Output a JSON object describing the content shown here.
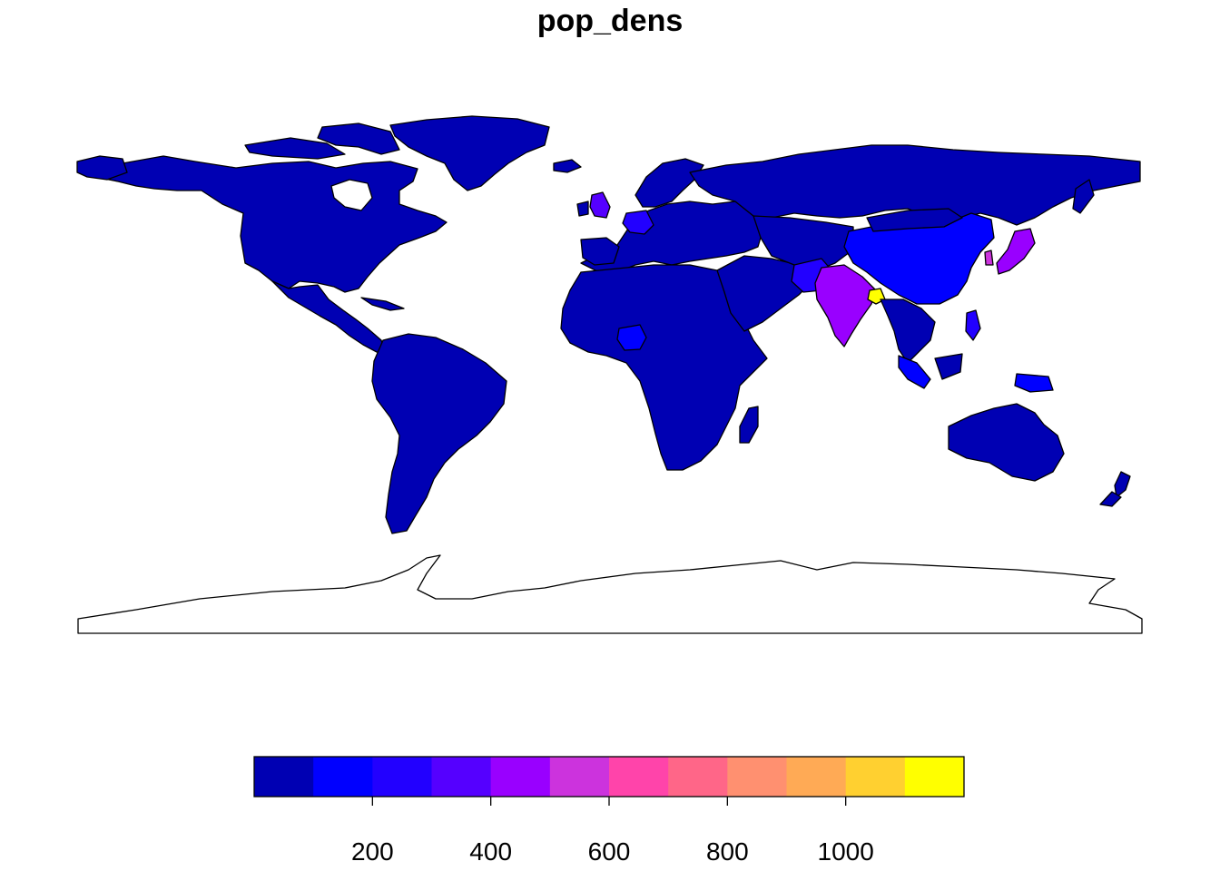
{
  "title": "pop_dens",
  "legend": {
    "colors": [
      "#0000B3",
      "#0000FF",
      "#2200FF",
      "#5500FF",
      "#9900FF",
      "#CC33DD",
      "#FF44AA",
      "#FF6688",
      "#FF9070",
      "#FFAA55",
      "#FFD030",
      "#FFFF00"
    ],
    "breaks": [
      0,
      100,
      200,
      300,
      400,
      500,
      600,
      700,
      800,
      900,
      1000,
      1100,
      1200
    ],
    "ticks": [
      200,
      400,
      600,
      800,
      1000
    ],
    "tick_labels": [
      "200",
      "400",
      "600",
      "800",
      "1000"
    ]
  },
  "colors": {
    "low": "#0000B3",
    "mid_low": "#2200FF",
    "india": "#9900FF",
    "japan": "#9900FF",
    "bangladesh": "#FFFF00",
    "uk": "#5500FF",
    "china": "#0000FF",
    "border": "#000000",
    "antarctica_fill": "#FFFFFF"
  }
}
